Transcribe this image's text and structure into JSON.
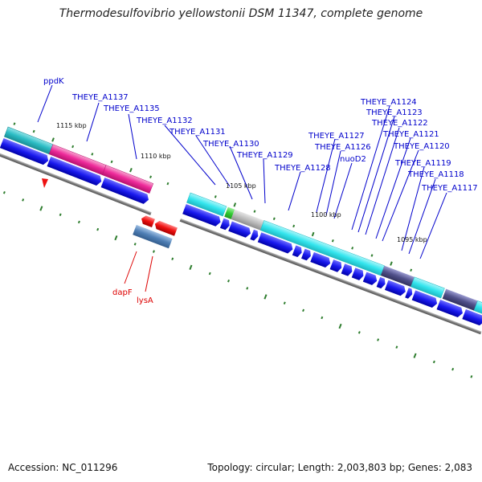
{
  "title": "Thermodesulfovibrio yellowstonii DSM 11347, complete genome",
  "footer": {
    "accession": "Accession: NC_011296",
    "topology": "Topology: circular; Length: 2,003,803 bp; Genes: 2,083"
  },
  "scale_labels": [
    "1115 kbp",
    "1110 kbp",
    "1105 kbp",
    "1100 kbp",
    "1095 kbp"
  ],
  "gene_labels": [
    {
      "text": "ppdK",
      "color": "#0000cc"
    },
    {
      "text": "THEYE_A1137",
      "color": "#0000cc"
    },
    {
      "text": "THEYE_A1135",
      "color": "#0000cc"
    },
    {
      "text": "THEYE_A1132",
      "color": "#0000cc"
    },
    {
      "text": "THEYE_A1131",
      "color": "#0000cc"
    },
    {
      "text": "THEYE_A1130",
      "color": "#0000cc"
    },
    {
      "text": "THEYE_A1129",
      "color": "#0000cc"
    },
    {
      "text": "THEYE_A1128",
      "color": "#0000cc"
    },
    {
      "text": "THEYE_A1127",
      "color": "#0000cc"
    },
    {
      "text": "THEYE_A1126",
      "color": "#0000cc"
    },
    {
      "text": "nuoD2",
      "color": "#0000cc"
    },
    {
      "text": "THEYE_A1124",
      "color": "#0000cc"
    },
    {
      "text": "THEYE_A1123",
      "color": "#0000cc"
    },
    {
      "text": "THEYE_A1122",
      "color": "#0000cc"
    },
    {
      "text": "THEYE_A1121",
      "color": "#0000cc"
    },
    {
      "text": "THEYE_A1120",
      "color": "#0000cc"
    },
    {
      "text": "THEYE_A1119",
      "color": "#0000cc"
    },
    {
      "text": "THEYE_A1118",
      "color": "#0000cc"
    },
    {
      "text": "THEYE_A1117",
      "color": "#0000cc"
    },
    {
      "text": "dapF",
      "color": "#dd0000"
    },
    {
      "text": "lysA",
      "color": "#dd0000"
    }
  ],
  "colors": {
    "forward_gene": "#1a1aee",
    "reverse_gene": "#ee1111",
    "cog_cyan": "#33e5ee",
    "cog_teal": "#2bbcc4",
    "cog_magenta": "#ee2a9a",
    "cog_gray": "#bbbbbb",
    "cog_green": "#33cc33",
    "cog_steel": "#4f7fb5",
    "cog_slate": "#50508a",
    "backbone": "#808080",
    "tick": "#2e7d2e"
  }
}
